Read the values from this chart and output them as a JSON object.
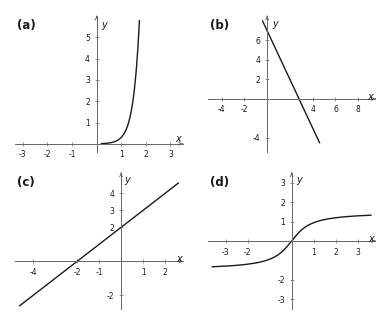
{
  "a_xlim": [
    -3.3,
    3.5
  ],
  "a_ylim": [
    -0.4,
    6.0
  ],
  "a_xticks": [
    -3,
    -2,
    -1,
    1,
    2,
    3
  ],
  "a_yticks": [
    1,
    2,
    3,
    4,
    5
  ],
  "b_xlim": [
    -5.2,
    9.5
  ],
  "b_ylim": [
    -5.5,
    8.5
  ],
  "b_xticks": [
    -4,
    -2,
    4,
    6,
    8
  ],
  "b_yticks": [
    -4,
    2,
    4,
    6
  ],
  "c_xlim": [
    -4.8,
    2.8
  ],
  "c_ylim": [
    -2.8,
    5.2
  ],
  "c_xticks": [
    -4,
    -2,
    -1,
    1,
    2
  ],
  "c_yticks": [
    -2,
    2,
    3,
    4
  ],
  "d_xlim": [
    -3.8,
    3.8
  ],
  "d_ylim": [
    -3.5,
    3.5
  ],
  "d_xticks": [
    -3,
    -2,
    1,
    2,
    3
  ],
  "d_yticks": [
    -3,
    -2,
    1,
    2,
    3
  ],
  "curve_color": "#1a1a1a",
  "axis_color": "#666666",
  "label_color": "#1a1a1a",
  "bg_color": "#ffffff",
  "tick_label_fontsize": 5.5,
  "axis_label_fontsize": 7,
  "sublabel_fontsize": 8.5,
  "linewidth": 1.0
}
